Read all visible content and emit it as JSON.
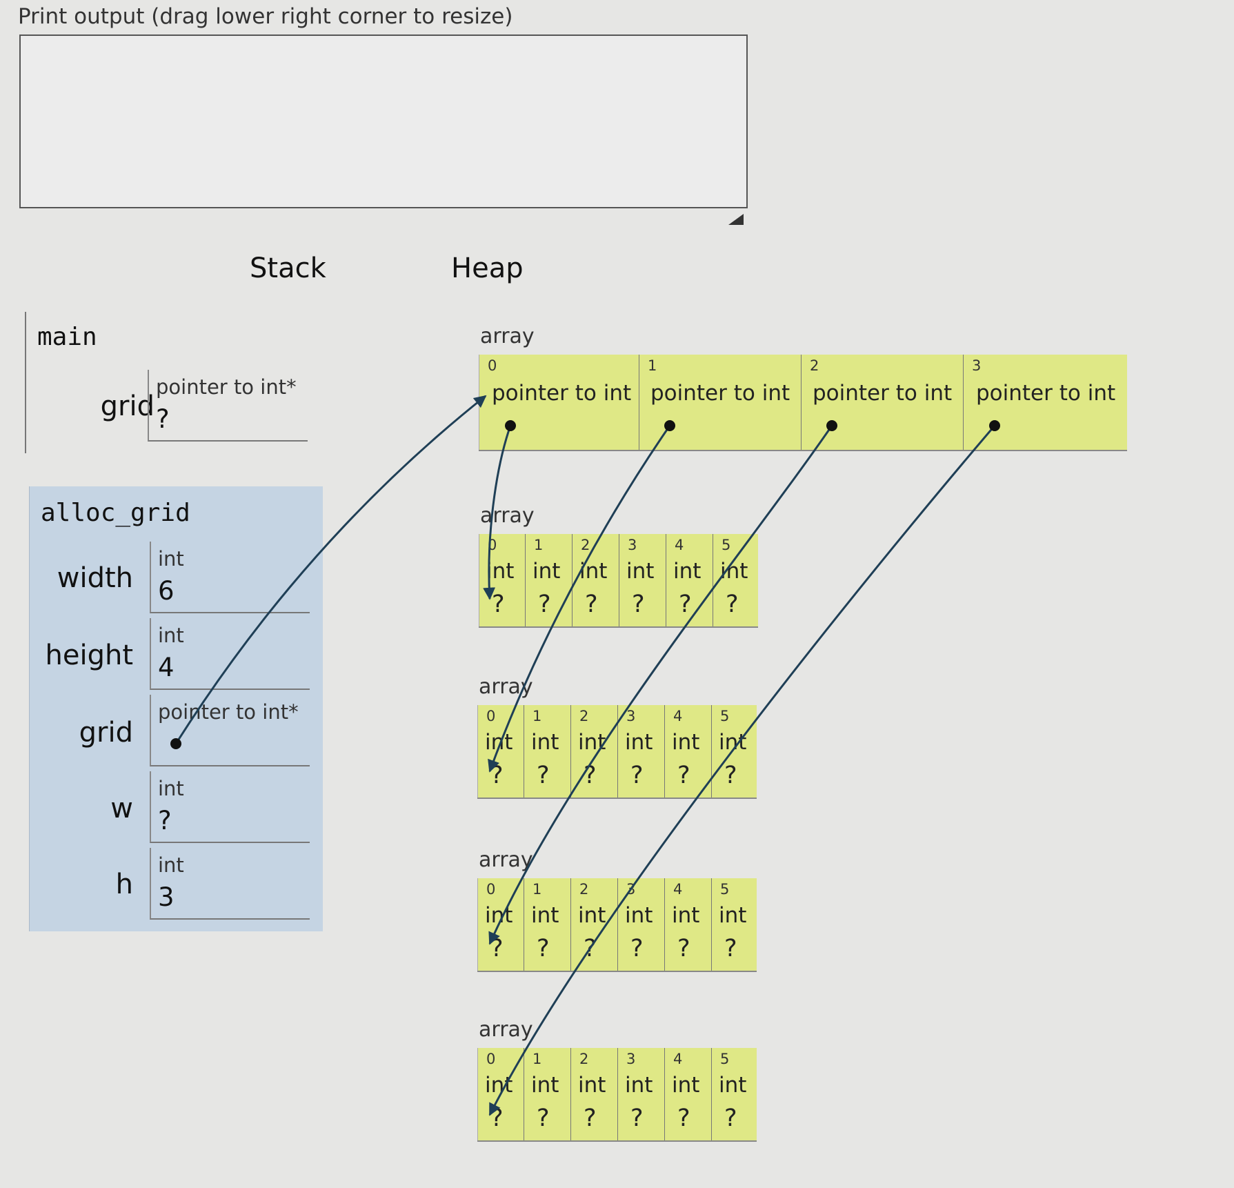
{
  "print_output": {
    "label": "Print output (drag lower right corner to resize)",
    "content": ""
  },
  "stack_title": "Stack",
  "heap_title": "Heap",
  "frames": {
    "main": {
      "name": "main",
      "vars": [
        {
          "name": "grid",
          "type": "pointer to int*",
          "value": "?"
        }
      ]
    },
    "alloc_grid": {
      "name": "alloc_grid",
      "vars": [
        {
          "name": "width",
          "type": "int",
          "value": "6"
        },
        {
          "name": "height",
          "type": "int",
          "value": "4"
        },
        {
          "name": "grid",
          "type": "pointer to int*",
          "value": ""
        },
        {
          "name": "w",
          "type": "int",
          "value": "?"
        },
        {
          "name": "h",
          "type": "int",
          "value": "3"
        }
      ]
    }
  },
  "heap": {
    "pointer_array": {
      "label": "array",
      "cells": [
        {
          "index": "0",
          "type": "pointer to int"
        },
        {
          "index": "1",
          "type": "pointer to int"
        },
        {
          "index": "2",
          "type": "pointer to int"
        },
        {
          "index": "3",
          "type": "pointer to int"
        }
      ]
    },
    "int_arrays": [
      {
        "label": "array",
        "cells": [
          {
            "index": "0",
            "type": "int",
            "value": "?"
          },
          {
            "index": "1",
            "type": "int",
            "value": "?"
          },
          {
            "index": "2",
            "type": "int",
            "value": "?"
          },
          {
            "index": "3",
            "type": "int",
            "value": "?"
          },
          {
            "index": "4",
            "type": "int",
            "value": "?"
          },
          {
            "index": "5",
            "type": "int",
            "value": "?"
          }
        ]
      },
      {
        "label": "array",
        "cells": [
          {
            "index": "0",
            "type": "int",
            "value": "?"
          },
          {
            "index": "1",
            "type": "int",
            "value": "?"
          },
          {
            "index": "2",
            "type": "int",
            "value": "?"
          },
          {
            "index": "3",
            "type": "int",
            "value": "?"
          },
          {
            "index": "4",
            "type": "int",
            "value": "?"
          },
          {
            "index": "5",
            "type": "int",
            "value": "?"
          }
        ]
      },
      {
        "label": "array",
        "cells": [
          {
            "index": "0",
            "type": "int",
            "value": "?"
          },
          {
            "index": "1",
            "type": "int",
            "value": "?"
          },
          {
            "index": "2",
            "type": "int",
            "value": "?"
          },
          {
            "index": "3",
            "type": "int",
            "value": "?"
          },
          {
            "index": "4",
            "type": "int",
            "value": "?"
          },
          {
            "index": "5",
            "type": "int",
            "value": "?"
          }
        ]
      },
      {
        "label": "array",
        "cells": [
          {
            "index": "0",
            "type": "int",
            "value": "?"
          },
          {
            "index": "1",
            "type": "int",
            "value": "?"
          },
          {
            "index": "2",
            "type": "int",
            "value": "?"
          },
          {
            "index": "3",
            "type": "int",
            "value": "?"
          },
          {
            "index": "4",
            "type": "int",
            "value": "?"
          },
          {
            "index": "5",
            "type": "int",
            "value": "?"
          }
        ]
      }
    ]
  },
  "colors": {
    "heap_cell": "#dfe886",
    "active_frame": "#c5d4e3",
    "arrow": "#1f3f56"
  },
  "icons": {
    "resize": "resize-grip-icon",
    "pointer": "pointer-arrow-icon"
  }
}
